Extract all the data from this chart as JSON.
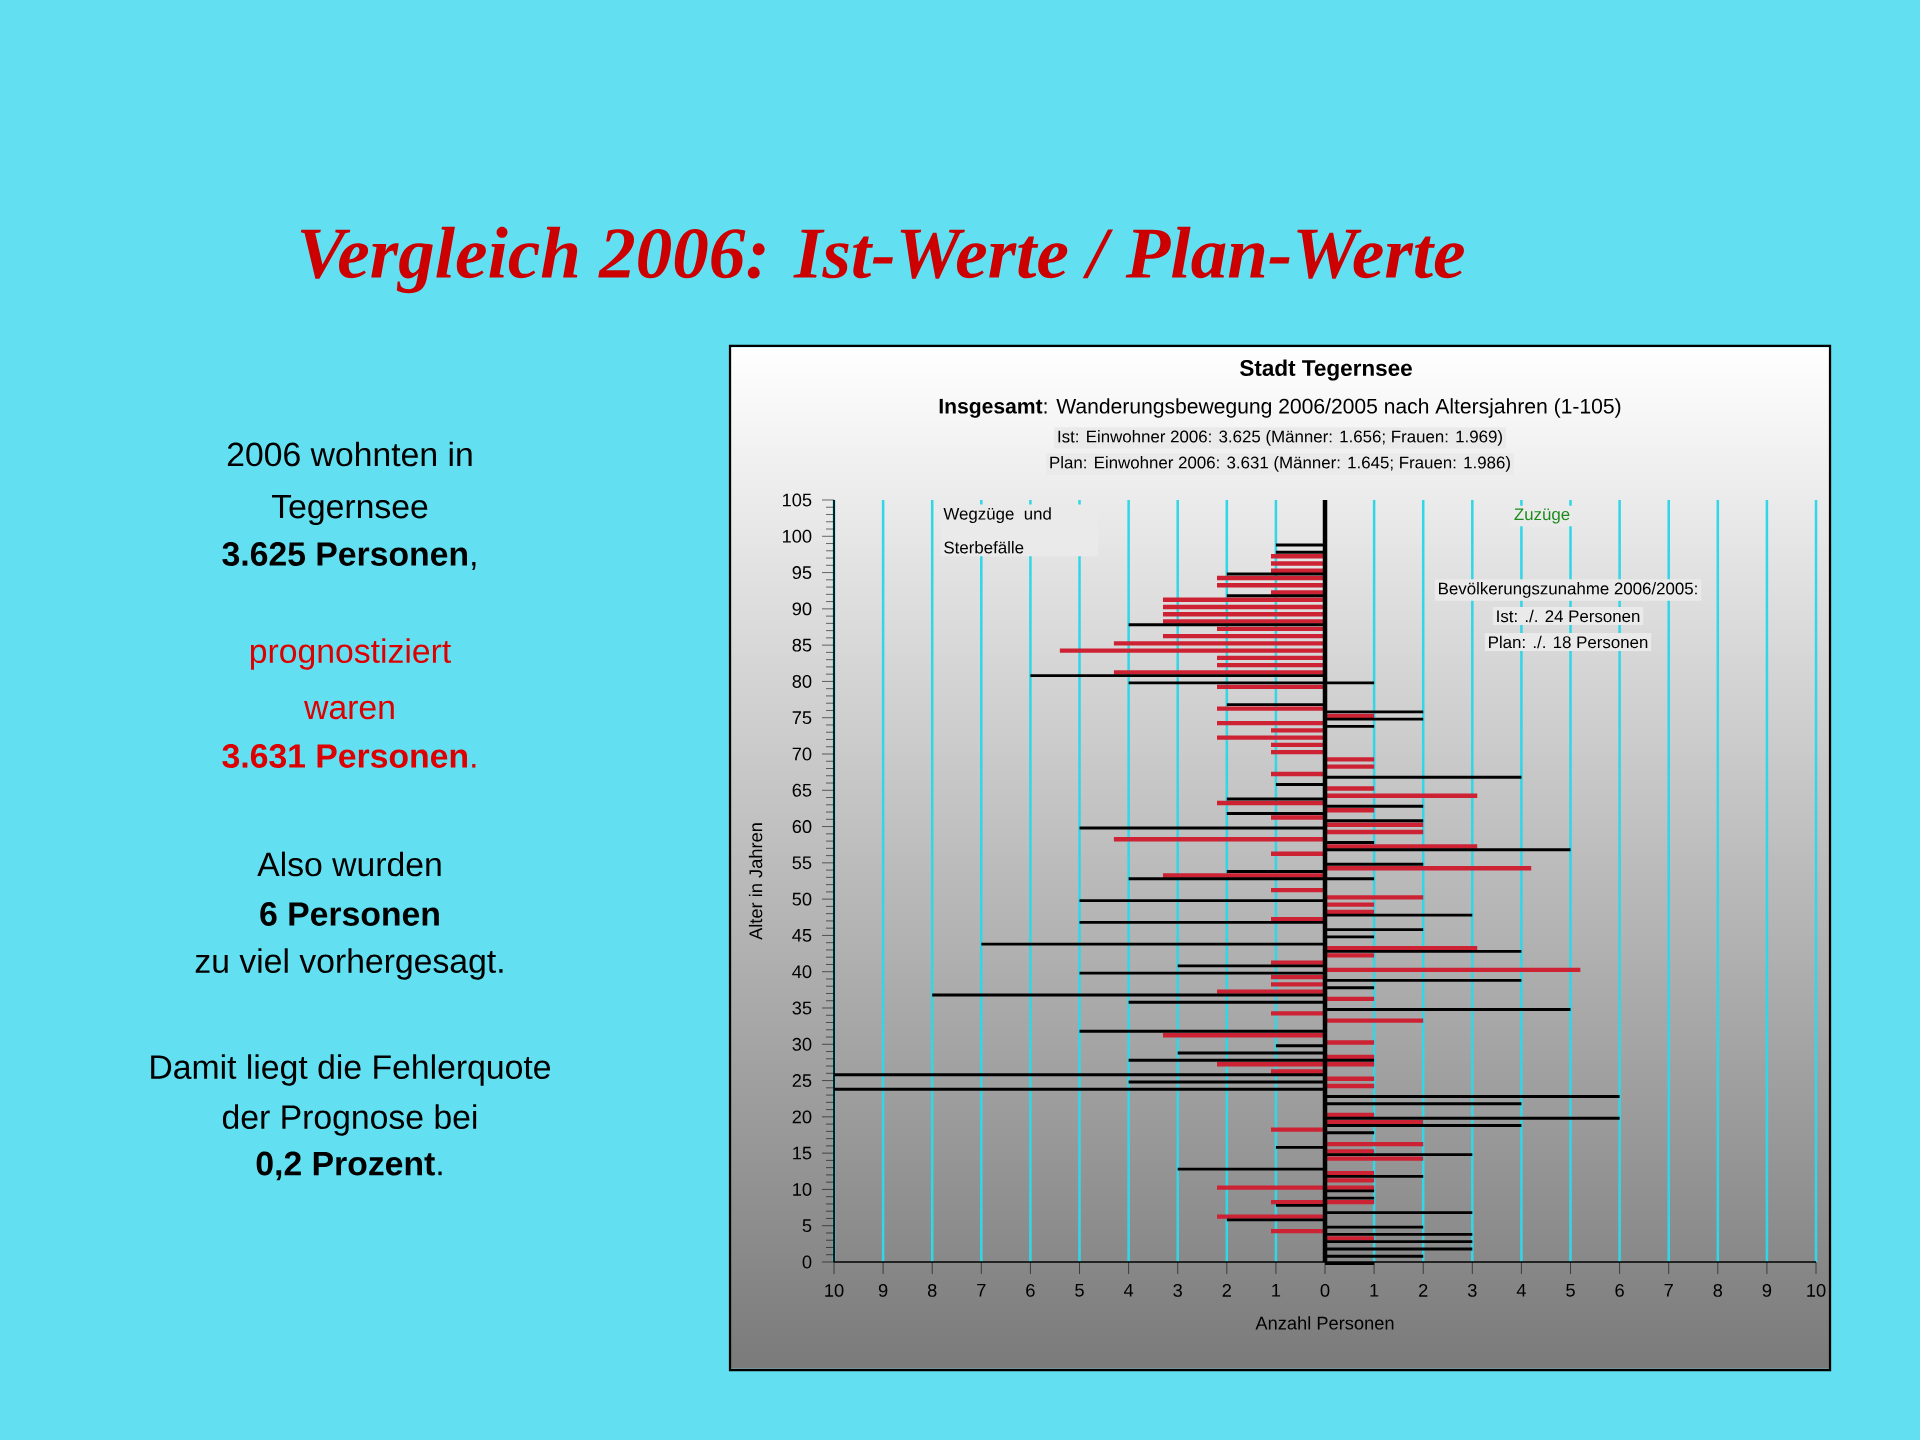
{
  "chart_data": [
    {
      "type": "other",
      "title": "Vergleich 2006: Ist-Werte / Plan-Werte",
      "annotations": [
        "2006 wohnten in",
        "Tegernsee",
        "**3.625 Personen**,",
        "prognostiziert",
        "waren",
        "**3.631 Personen**.",
        "Also wurden",
        "**6 Personen**",
        "zu viel vorhergesagt.",
        "Damit liegt die Fehlerquote",
        "der Prognose bei",
        "**0,2 Prozent**."
      ]
    },
    {
      "type": "bar",
      "orientation": "horizontal",
      "title": "Stadt Tegernsee",
      "subtitle": "**Insgesamt**: Wanderungsbewegung 2006/2005 nach Altersjahren (1-105)",
      "xlabel": "Anzahl Personen",
      "ylabel": "Alter in Jahren",
      "annotations": [
        "Ist:  Einwohner 2006: 3.625 (Männer: 1.656; Frauen: 1.969)",
        "Plan: Einwohner 2006: 3.631 (Männer: 1.645; Frauen: 1.986)",
        "Wegzüge und Sterbefälle",
        "Zuzüge",
        "Bevölkerungszunahme 2006/2005:",
        "Ist:    ./. 24 Personen",
        "Plan: ./. 18 Personen"
      ],
      "x": [
        0,
        1,
        2,
        3,
        4,
        5,
        6,
        7,
        8,
        9,
        10,
        11,
        12,
        13,
        14,
        15,
        16,
        17,
        18,
        19,
        20,
        21,
        22,
        23,
        24,
        25,
        26,
        27,
        28,
        29,
        30,
        31,
        32,
        33,
        34,
        35,
        36,
        37,
        38,
        39,
        40,
        41,
        42,
        43,
        44,
        45,
        46,
        47,
        48,
        49,
        50,
        51,
        52,
        53,
        54,
        55,
        56,
        57,
        58,
        59,
        60,
        61,
        62,
        63,
        64,
        65,
        66,
        67,
        68,
        69,
        70,
        71,
        72,
        73,
        74,
        75,
        76,
        77,
        78,
        79,
        80,
        81,
        82,
        83,
        84,
        85,
        86,
        87,
        88,
        89,
        90,
        91,
        92,
        93,
        94,
        95,
        96,
        97,
        98,
        99,
        100,
        101,
        102,
        103,
        104,
        105
      ],
      "series": [
        {
          "color": "#cc2233",
          "values": [
            0,
            0,
            0,
            0,
            -1.1,
            0,
            -2.2,
            0,
            -1.1,
            0,
            -2.2,
            0,
            0,
            0,
            0,
            0,
            0,
            0,
            -1.1,
            0,
            0,
            0,
            0,
            0,
            0,
            0,
            -1.1,
            -2.2,
            0,
            0,
            0,
            -3.3,
            0,
            0,
            -1.1,
            0,
            0,
            -2.2,
            -1.1,
            -1.1,
            0,
            -1.1,
            0,
            0,
            0,
            0,
            0,
            -1.1,
            0,
            0,
            0,
            -1.1,
            0,
            -3.3,
            0,
            0,
            -1.1,
            0,
            -4.3,
            0,
            0,
            -1.1,
            0,
            -2.2,
            0,
            0,
            0,
            -1.1,
            0,
            0,
            -1.1,
            -1.1,
            -2.2,
            -1.1,
            -2.2,
            0,
            -2.2,
            0,
            0,
            -2.2,
            0,
            -4.3,
            -2.2,
            -2.2,
            -5.4,
            -4.3,
            -3.3,
            -2.2,
            -3.3,
            -3.3,
            -3.3,
            -3.3,
            -1.1,
            -2.2,
            -2.2,
            -1.1,
            -1.1,
            -1.1,
            0,
            0,
            0,
            0,
            0,
            0,
            0,
            0
          ]
        },
        {
          "color": "#cc2233",
          "values": [
            0,
            0,
            0,
            1,
            0,
            0,
            0,
            0,
            1,
            0,
            1,
            1,
            1,
            0,
            2,
            1,
            2,
            0,
            0,
            2,
            1,
            0,
            0,
            0,
            1,
            1,
            0,
            1,
            1,
            0,
            1,
            0,
            0,
            2,
            0,
            0,
            1,
            0,
            0,
            0,
            5.2,
            0,
            1,
            3.1,
            0,
            0,
            0,
            0,
            1,
            1,
            2,
            0,
            0,
            0,
            4.2,
            0,
            0,
            3.1,
            0,
            2,
            2,
            0,
            1,
            0,
            3.1,
            1,
            0,
            0,
            1,
            1,
            0,
            0,
            0,
            0,
            0,
            1,
            0,
            0,
            0,
            0,
            0,
            0,
            0,
            0,
            0,
            0,
            0,
            0,
            0,
            0,
            0,
            0,
            0,
            0,
            0,
            0,
            0,
            0,
            0,
            0,
            0,
            0,
            0,
            0,
            0,
            0
          ]
        },
        {
          "color": "#000000",
          "values": [
            0,
            0,
            0,
            0,
            0,
            0,
            -2,
            0,
            -1,
            0,
            0,
            0,
            0,
            -3,
            0,
            0,
            -1,
            0,
            0,
            0,
            0,
            0,
            0,
            0,
            -10,
            -4,
            -10,
            0,
            -4,
            -3,
            -1,
            0,
            -5,
            0,
            0,
            0,
            -4,
            -8,
            0,
            0,
            -5,
            -3,
            0,
            0,
            -7,
            0,
            0,
            -5,
            0,
            0,
            -5,
            0,
            0,
            -4,
            -2,
            0,
            0,
            0,
            0,
            0,
            -5,
            0,
            -2,
            0,
            -2,
            0,
            -1,
            0,
            0,
            0,
            0,
            0,
            0,
            0,
            0,
            0,
            0,
            -2,
            0,
            0,
            -4,
            -6,
            0,
            0,
            0,
            0,
            0,
            0,
            -4,
            0,
            0,
            0,
            -2,
            0,
            0,
            -2,
            0,
            0,
            -1,
            -1,
            0,
            0,
            0,
            0,
            0,
            0
          ]
        },
        {
          "color": "#000000",
          "values": [
            1,
            2,
            3,
            3,
            3,
            2,
            0,
            3,
            0,
            1,
            1,
            0,
            2,
            0,
            0,
            3,
            0,
            0,
            1,
            4,
            6,
            0,
            4,
            6,
            0,
            0,
            0,
            0,
            1,
            0,
            0,
            0,
            0,
            0,
            0,
            5,
            0,
            0,
            1,
            4,
            0,
            0,
            0,
            4,
            0,
            1,
            2,
            0,
            3,
            0,
            0,
            0,
            0,
            1,
            0,
            2,
            0,
            5,
            1,
            0,
            0,
            2,
            0,
            2,
            0,
            0,
            0,
            4,
            0,
            0,
            0,
            0,
            0,
            0,
            1,
            2,
            2,
            0,
            0,
            0,
            1,
            0,
            0,
            0,
            0,
            0,
            0,
            0,
            0,
            0,
            0,
            0,
            0,
            0,
            0,
            0,
            0,
            0,
            0,
            0,
            0,
            0,
            0,
            0,
            0,
            0
          ]
        }
      ],
      "xlim": [
        -10,
        10
      ],
      "xticks": [
        {
          "value": -10,
          "label": "10"
        },
        {
          "value": -9,
          "label": "9"
        },
        {
          "value": -8,
          "label": "8"
        },
        {
          "value": -7,
          "label": "7"
        },
        {
          "value": -6,
          "label": "6"
        },
        {
          "value": -5,
          "label": "5"
        },
        {
          "value": -4,
          "label": "4"
        },
        {
          "value": -3,
          "label": "3"
        },
        {
          "value": -2,
          "label": "2"
        },
        {
          "value": -1,
          "label": "1"
        },
        0,
        1,
        2,
        3,
        4,
        5,
        6,
        7,
        8,
        9,
        10
      ],
      "ylim": [
        0,
        105
      ],
      "yticks": [
        0,
        5,
        10,
        15,
        20,
        25,
        30,
        35,
        40,
        45,
        50,
        55,
        60,
        65,
        70,
        75,
        80,
        85,
        90,
        95,
        100,
        105
      ],
      "grid": "x",
      "ref_lines": [
        {
          "axis": "x",
          "value": 0,
          "color": "#000000"
        }
      ]
    }
  ]
}
